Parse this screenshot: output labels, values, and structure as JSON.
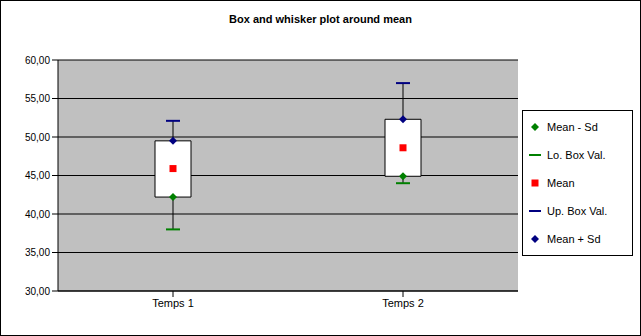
{
  "chart_data": {
    "type": "box",
    "title": "Box and whisker plot around mean",
    "categories": [
      "Temps 1",
      "Temps 2"
    ],
    "series": [
      {
        "name": "Mean - Sd",
        "color": "#008000",
        "marker": "diamond",
        "values": [
          42.2,
          44.9
        ]
      },
      {
        "name": "Lo. Box Val.",
        "color": "#008000",
        "marker": "dash",
        "values": [
          38.0,
          44.0
        ]
      },
      {
        "name": "Mean",
        "color": "#ff0000",
        "marker": "square",
        "values": [
          45.9,
          48.6
        ]
      },
      {
        "name": "Up. Box Val.",
        "color": "#000080",
        "marker": "dash",
        "values": [
          52.1,
          57.0
        ]
      },
      {
        "name": "Mean + Sd",
        "color": "#000080",
        "marker": "diamond",
        "values": [
          49.5,
          52.3
        ]
      }
    ],
    "ylim": [
      30,
      60
    ],
    "yticks": [
      {
        "value": 30,
        "label": "30,00"
      },
      {
        "value": 35,
        "label": "35,00"
      },
      {
        "value": 40,
        "label": "40,00"
      },
      {
        "value": 45,
        "label": "45,00"
      },
      {
        "value": 50,
        "label": "50,00"
      },
      {
        "value": 55,
        "label": "55,00"
      },
      {
        "value": 60,
        "label": "60,00"
      }
    ],
    "grid": true,
    "legend": "right"
  }
}
